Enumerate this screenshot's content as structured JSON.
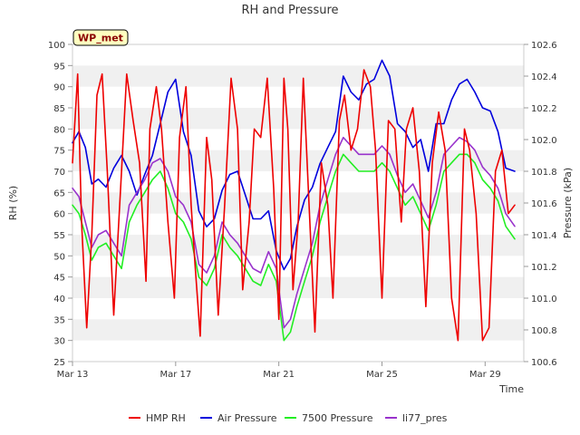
{
  "chart_data": {
    "type": "line",
    "title": "RH and Pressure",
    "xlabel": "Time",
    "ylabel_left": "RH (%)",
    "ylabel_right": "Pressure (kPa)",
    "badge": "WP_met",
    "x_ticks": [
      "Mar 13",
      "Mar 17",
      "Mar 21",
      "Mar 25",
      "Mar 29"
    ],
    "x_tick_days": [
      13,
      17,
      21,
      25,
      29
    ],
    "xlim": [
      13,
      30.5
    ],
    "ylim_left": [
      25,
      100
    ],
    "y_ticks_left": [
      25,
      30,
      35,
      40,
      45,
      50,
      55,
      60,
      65,
      70,
      75,
      80,
      85,
      90,
      95,
      100
    ],
    "ylim_right": [
      100.6,
      102.6
    ],
    "y_ticks_right": [
      "100.6",
      "100.8",
      "101.0",
      "101.2",
      "101.4",
      "101.6",
      "101.8",
      "102.0",
      "102.2",
      "102.4",
      "102.6"
    ],
    "grid": "horizontal bands",
    "legend_position": "bottom",
    "colors": {
      "hmp_rh": "#ee0000",
      "air_pressure": "#0000dd",
      "p7500": "#22ee22",
      "li77": "#9933cc",
      "band": "#f0f0f0",
      "badge_fill": "#ffffc0",
      "badge_text": "#8b0000"
    },
    "series": [
      {
        "name": "HMP RH",
        "axis": "left",
        "x": [
          13.0,
          13.2,
          13.35,
          13.55,
          13.75,
          13.95,
          14.15,
          14.35,
          14.6,
          14.9,
          15.1,
          15.35,
          15.6,
          15.85,
          16.0,
          16.25,
          16.45,
          16.7,
          16.95,
          17.15,
          17.4,
          17.6,
          17.75,
          17.95,
          18.2,
          18.4,
          18.65,
          18.9,
          19.15,
          19.4,
          19.6,
          19.85,
          20.05,
          20.3,
          20.55,
          20.8,
          21.0,
          21.2,
          21.35,
          21.55,
          21.75,
          21.95,
          22.15,
          22.4,
          22.65,
          22.9,
          23.1,
          23.35,
          23.55,
          23.8,
          24.05,
          24.3,
          24.55,
          24.75,
          25.0,
          25.25,
          25.5,
          25.75,
          25.95,
          26.2,
          26.45,
          26.7,
          26.95,
          27.2,
          27.45,
          27.7,
          27.95,
          28.2,
          28.4,
          28.65,
          28.9,
          29.15,
          29.4,
          29.65,
          29.9,
          30.15
        ],
        "values": [
          72,
          93,
          58,
          33,
          55,
          88,
          93,
          70,
          36,
          70,
          93,
          82,
          72,
          44,
          80,
          90,
          80,
          58,
          40,
          78,
          90,
          62,
          48,
          31,
          78,
          68,
          36,
          62,
          92,
          80,
          42,
          58,
          80,
          78,
          92,
          66,
          35,
          92,
          80,
          42,
          58,
          92,
          65,
          32,
          72,
          62,
          40,
          82,
          88,
          75,
          80,
          94,
          90,
          75,
          40,
          82,
          80,
          58,
          80,
          85,
          70,
          38,
          72,
          84,
          75,
          40,
          30,
          80,
          75,
          60,
          30,
          33,
          70,
          75,
          60,
          62
        ]
      },
      {
        "name": "Air Pressure",
        "axis": "right",
        "x": [
          13.0,
          13.25,
          13.5,
          13.75,
          14.0,
          14.3,
          14.6,
          14.9,
          15.2,
          15.5,
          15.8,
          16.1,
          16.4,
          16.7,
          17.0,
          17.3,
          17.6,
          17.9,
          18.2,
          18.5,
          18.8,
          19.1,
          19.4,
          19.7,
          20.0,
          20.3,
          20.6,
          20.9,
          21.2,
          21.45,
          21.7,
          22.0,
          22.3,
          22.6,
          22.9,
          23.2,
          23.5,
          23.8,
          24.1,
          24.4,
          24.7,
          25.0,
          25.3,
          25.6,
          25.9,
          26.2,
          26.5,
          26.8,
          27.1,
          27.4,
          27.7,
          28.0,
          28.3,
          28.6,
          28.9,
          29.2,
          29.5,
          29.8,
          30.15
        ],
        "values": [
          101.98,
          102.05,
          101.95,
          101.72,
          101.75,
          101.7,
          101.82,
          101.9,
          101.8,
          101.65,
          101.78,
          101.9,
          102.1,
          102.3,
          102.38,
          102.05,
          101.9,
          101.55,
          101.45,
          101.5,
          101.68,
          101.78,
          101.8,
          101.65,
          101.5,
          101.5,
          101.55,
          101.3,
          101.18,
          101.25,
          101.45,
          101.62,
          101.7,
          101.85,
          101.95,
          102.05,
          102.4,
          102.3,
          102.25,
          102.35,
          102.38,
          102.5,
          102.4,
          102.1,
          102.05,
          101.95,
          102.0,
          101.8,
          102.1,
          102.1,
          102.25,
          102.35,
          102.38,
          102.3,
          102.2,
          102.18,
          102.05,
          101.82,
          101.8
        ]
      },
      {
        "name": "7500 Pressure",
        "axis": "left",
        "x": [
          13.0,
          13.25,
          13.5,
          13.75,
          14.0,
          14.3,
          14.6,
          14.9,
          15.2,
          15.5,
          15.8,
          16.1,
          16.4,
          16.7,
          17.0,
          17.3,
          17.6,
          17.9,
          18.2,
          18.5,
          18.8,
          19.1,
          19.4,
          19.7,
          20.0,
          20.3,
          20.6,
          20.9,
          21.2,
          21.45,
          21.7,
          22.0,
          22.3,
          22.6,
          22.9,
          23.2,
          23.5,
          23.8,
          24.1,
          24.4,
          24.7,
          25.0,
          25.3,
          25.6,
          25.9,
          26.2,
          26.5,
          26.8,
          27.1,
          27.4,
          27.7,
          28.0,
          28.3,
          28.6,
          28.9,
          29.2,
          29.5,
          29.8,
          30.15
        ],
        "values": [
          62,
          60,
          55,
          49,
          52,
          53,
          50,
          47,
          58,
          62,
          65,
          68,
          70,
          66,
          60,
          58,
          54,
          45,
          43,
          47,
          55,
          52,
          50,
          47,
          44,
          43,
          48,
          44,
          30,
          32,
          38,
          44,
          50,
          58,
          64,
          70,
          74,
          72,
          70,
          70,
          70,
          72,
          70,
          66,
          62,
          64,
          60,
          56,
          62,
          70,
          72,
          74,
          74,
          72,
          68,
          66,
          63,
          57,
          54
        ]
      },
      {
        "name": "li77_pres",
        "axis": "left",
        "x": [
          13.0,
          13.25,
          13.5,
          13.75,
          14.0,
          14.3,
          14.6,
          14.9,
          15.2,
          15.5,
          15.8,
          16.1,
          16.4,
          16.7,
          17.0,
          17.3,
          17.6,
          17.9,
          18.2,
          18.5,
          18.8,
          19.1,
          19.4,
          19.7,
          20.0,
          20.3,
          20.6,
          20.9,
          21.2,
          21.45,
          21.7,
          22.0,
          22.3,
          22.6,
          22.9,
          23.2,
          23.5,
          23.8,
          24.1,
          24.4,
          24.7,
          25.0,
          25.3,
          25.6,
          25.9,
          26.2,
          26.5,
          26.8,
          27.1,
          27.4,
          27.7,
          28.0,
          28.3,
          28.6,
          28.9,
          29.2,
          29.5,
          29.8,
          30.15
        ],
        "values": [
          66,
          64,
          58,
          52,
          55,
          56,
          53,
          50,
          62,
          65,
          68,
          72,
          73,
          70,
          64,
          62,
          58,
          48,
          46,
          50,
          58,
          55,
          53,
          50,
          47,
          46,
          51,
          47,
          33,
          35,
          41,
          47,
          53,
          62,
          68,
          74,
          78,
          76,
          74,
          74,
          74,
          76,
          74,
          69,
          65,
          67,
          63,
          59,
          65,
          74,
          76,
          78,
          77,
          75,
          71,
          69,
          66,
          60,
          57
        ]
      }
    ]
  }
}
